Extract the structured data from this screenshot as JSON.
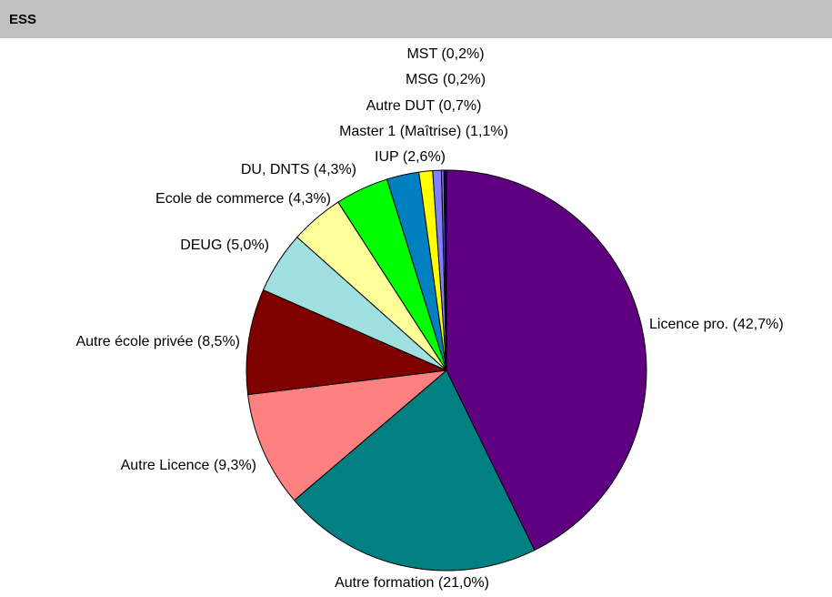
{
  "header": {
    "title": "ESS"
  },
  "chart_data": {
    "type": "pie",
    "categories": [
      "Licence pro.",
      "Autre formation",
      "Autre Licence",
      "Autre école privée",
      "DEUG",
      "Ecole de commerce",
      "DU, DNTS",
      "IUP",
      "Master 1 (Maîtrise)",
      "Autre DUT",
      "MSG",
      "MST"
    ],
    "values": [
      42.7,
      21.0,
      9.3,
      8.5,
      5.0,
      4.3,
      4.3,
      2.6,
      1.1,
      0.7,
      0.2,
      0.2
    ],
    "value_labels": [
      "(42,7%)",
      "(21,0%)",
      "(9,3%)",
      "(8,5%)",
      "(5,0%)",
      "(4,3%)",
      "(4,3%)",
      "(2,6%)",
      "(1,1%)",
      "(0,7%)",
      "(0,2%)",
      "(0,2%)"
    ],
    "colors": [
      "#5f0080",
      "#008080",
      "#ff8080",
      "#800000",
      "#a0e0e0",
      "#ffff99",
      "#00ff00",
      "#0080c0",
      "#ffff00",
      "#8080ff",
      "#9966ff",
      "#000080"
    ]
  }
}
